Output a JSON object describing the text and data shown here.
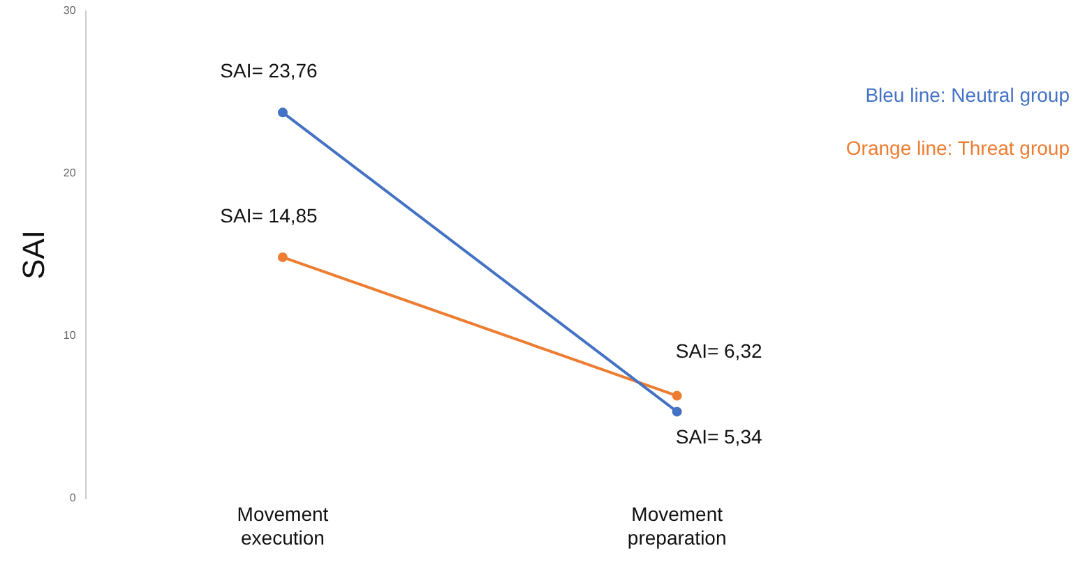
{
  "chart_data": {
    "type": "line",
    "ylabel": "SAI",
    "categories": [
      "Movement execution",
      "Movement preparation"
    ],
    "series": [
      {
        "name": "Bleu line: Neutral group",
        "color": "#4472c4",
        "values": [
          23.76,
          5.34
        ],
        "value_labels": [
          "SAI= 23,76",
          "SAI= 5,34"
        ]
      },
      {
        "name": "Orange line: Threat group",
        "color": "#ed7d31",
        "values": [
          14.85,
          6.32
        ],
        "value_labels": [
          "SAI= 14,85",
          "SAI= 6,32"
        ]
      }
    ],
    "ylim": [
      0,
      30
    ],
    "yticks": [
      0,
      10,
      20,
      30
    ],
    "grid": false,
    "legend": "top right",
    "marker": "circle",
    "line_style": "solid"
  }
}
